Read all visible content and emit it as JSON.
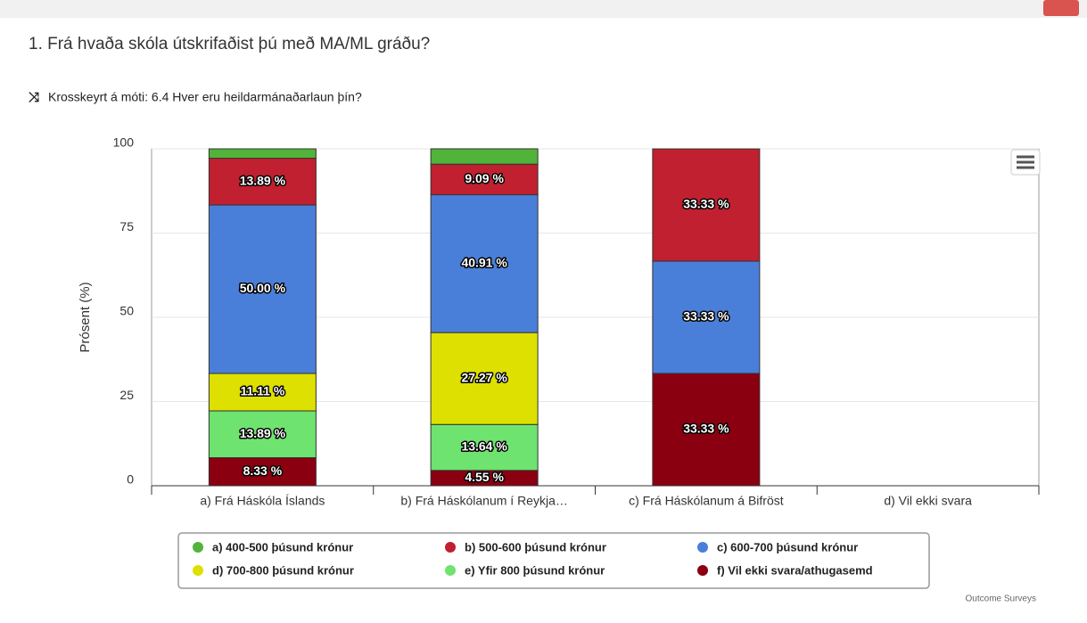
{
  "chart_data": {
    "type": "stacked_bar",
    "title": "1. Frá hvaða skóla útskrifaðist þú með MA/ML gráðu?",
    "subtitle": "Krosskeyrt á móti: 6.4 Hver eru heildarmánaðarlaun þín?",
    "y_label": "Prósent (%)",
    "credit": "Outcome Surveys",
    "categories": [
      "a) Frá Háskóla Íslands",
      "b) Frá Háskólanum í Reykja…",
      "c) Frá Háskólanum á Bifröst",
      "d) Vil ekki svara"
    ],
    "ylim": [
      0,
      100
    ],
    "yticks": [
      0,
      25,
      50,
      75,
      100
    ],
    "grid": true,
    "legend": "bottom",
    "series": [
      {
        "name": "a) 400-500 þúsund krónur",
        "color": "#52b33a",
        "values": [
          2.78,
          4.55,
          0,
          0
        ],
        "value_labels": [
          null,
          null,
          null,
          null
        ]
      },
      {
        "name": "b) 500-600 þúsund krónur",
        "color": "#c0202f",
        "values": [
          13.89,
          9.09,
          33.33,
          0
        ],
        "value_labels": [
          "13.89 %",
          "9.09 %",
          "33.33 %",
          null
        ]
      },
      {
        "name": "c) 600-700 þúsund krónur",
        "color": "#4a7fd9",
        "values": [
          50,
          40.91,
          33.33,
          0
        ],
        "value_labels": [
          "50.00 %",
          "40.91 %",
          "33.33 %",
          null
        ]
      },
      {
        "name": "d) 700-800 þúsund krónur",
        "color": "#dde000",
        "values": [
          11.11,
          27.27,
          0,
          0
        ],
        "value_labels": [
          "11.11 %",
          "27.27 %",
          null,
          null
        ]
      },
      {
        "name": "e) Yfir 800 þúsund krónur",
        "color": "#6fe36f",
        "values": [
          13.89,
          13.64,
          0,
          0
        ],
        "value_labels": [
          "13.89 %",
          "13.64 %",
          null,
          null
        ]
      },
      {
        "name": "f) Vil ekki svara/athugasemd",
        "color": "#8b0010",
        "values": [
          8.33,
          4.55,
          33.33,
          0
        ],
        "value_labels": [
          "8.33 %",
          "4.55 %",
          "33.33 %",
          null
        ]
      }
    ]
  }
}
